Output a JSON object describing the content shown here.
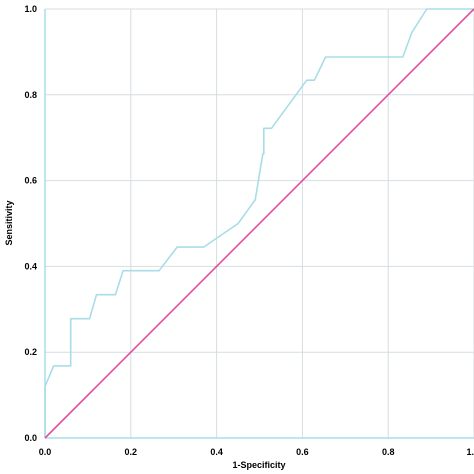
{
  "chart_data": {
    "type": "line",
    "xlabel": "1-Specificity",
    "ylabel": "Sensitivity",
    "xlim": [
      0,
      1
    ],
    "ylim": [
      0,
      1
    ],
    "x_ticks": [
      "0.0",
      "0.2",
      "0.4",
      "0.6",
      "0.8",
      "1."
    ],
    "y_ticks": [
      "0.0",
      "0.2",
      "0.4",
      "0.6",
      "0.8",
      "1.0"
    ],
    "grid": true,
    "colors": {
      "roc": "#a8dde8",
      "reference": "#e0509c",
      "grid": "#d6dde0",
      "axis": "#a8dde8"
    },
    "series": [
      {
        "x": [
          0.0,
          0.0,
          0.0,
          0.02,
          0.06,
          0.06,
          0.104,
          0.12,
          0.164,
          0.182,
          0.266,
          0.308,
          0.37,
          0.45,
          0.49,
          0.508,
          0.51,
          0.51,
          0.528,
          0.61,
          0.628,
          0.654,
          0.834,
          0.855,
          0.89,
          1.0
        ],
        "y": [
          0.0,
          0.0,
          0.12,
          0.168,
          0.168,
          0.278,
          0.278,
          0.334,
          0.334,
          0.39,
          0.39,
          0.445,
          0.445,
          0.5,
          0.555,
          0.663,
          0.663,
          0.722,
          0.722,
          0.834,
          0.834,
          0.888,
          0.888,
          0.945,
          1.0,
          1.0
        ]
      },
      {
        "x": [
          0.0,
          1.0
        ],
        "y": [
          0.0,
          1.0
        ]
      }
    ]
  }
}
